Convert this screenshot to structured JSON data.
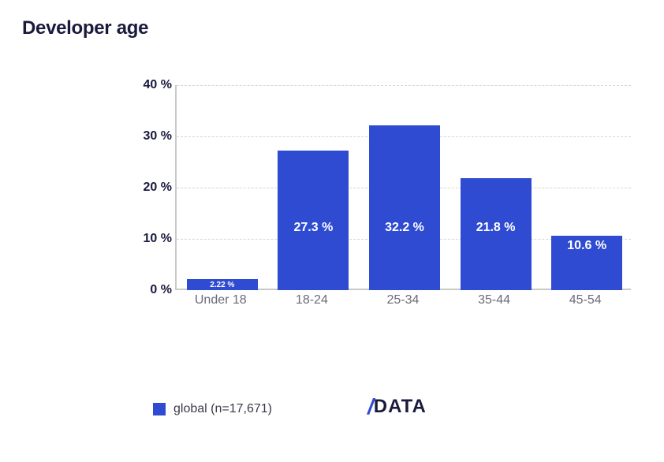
{
  "title": "Developer age",
  "chart": {
    "type": "bar",
    "categories": [
      "Under 18",
      "18-24",
      "25-34",
      "35-44",
      "45-54"
    ],
    "values": [
      2.22,
      27.3,
      32.2,
      21.8,
      10.6
    ],
    "value_labels": [
      "2.22 %",
      "27.3 %",
      "32.2 %",
      "21.8 %",
      "10.6 %"
    ],
    "bar_color": "#2e4bd1",
    "bar_width_ratio": 0.78,
    "ylim": [
      0,
      40
    ],
    "yticks": [
      0,
      10,
      20,
      30,
      40
    ],
    "ytick_labels": [
      "0 %",
      "10 %",
      "20 %",
      "30 %",
      "40 %"
    ],
    "grid_color": "#d6d6d6",
    "axis_color": "#c9c9c9",
    "background_color": "#ffffff",
    "title_fontsize": 24,
    "tick_fontsize": 16,
    "ytick_fontweight": 700,
    "bar_label_color": "#ffffff",
    "bar_label_fontsize_normal": 16,
    "bar_label_fontsize_small": 10,
    "xtick_color": "#6a6a7a"
  },
  "legend": {
    "swatch_color": "#2e4bd1",
    "label": "global (n=17,671)"
  },
  "logo": {
    "prefix": "/",
    "prefix_color": "#2e4bd1",
    "text": "DATA",
    "text_color": "#1a1a3d"
  }
}
